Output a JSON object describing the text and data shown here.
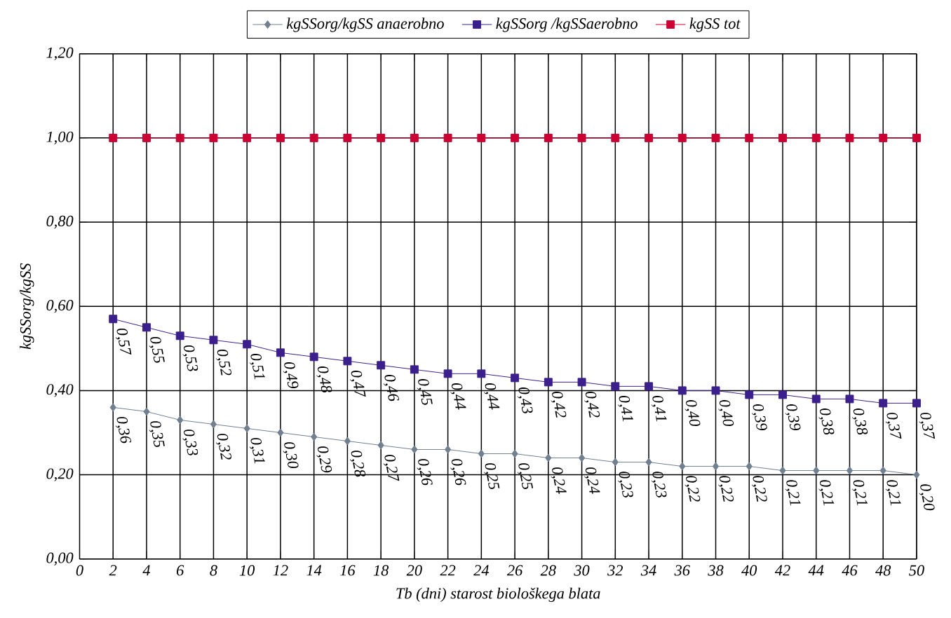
{
  "chart_data": {
    "type": "line",
    "xlabel": "Tb (dni) starost biološkega blata",
    "ylabel": "kgSSorg/kgSS",
    "x": [
      2,
      4,
      6,
      8,
      10,
      12,
      14,
      16,
      18,
      20,
      22,
      24,
      26,
      28,
      30,
      32,
      34,
      36,
      38,
      40,
      42,
      44,
      46,
      48,
      50
    ],
    "series": [
      {
        "name": "kgSSorg/kgSS anaerobno",
        "color": "#708090",
        "marker": "diamond",
        "values": [
          0.36,
          0.35,
          0.33,
          0.32,
          0.31,
          0.3,
          0.29,
          0.28,
          0.27,
          0.26,
          0.26,
          0.25,
          0.25,
          0.24,
          0.24,
          0.23,
          0.23,
          0.22,
          0.22,
          0.22,
          0.21,
          0.21,
          0.21,
          0.21,
          0.2
        ],
        "value_labels": [
          "0,36",
          "0,35",
          "0,33",
          "0,32",
          "0,31",
          "0,30",
          "0,29",
          "0,28",
          "0,27",
          "0,26",
          "0,26",
          "0,25",
          "0,25",
          "0,24",
          "0,24",
          "0,23",
          "0,23",
          "0,22",
          "0,22",
          "0,22",
          "0,21",
          "0,21",
          "0,21",
          "0,21",
          "0,20"
        ]
      },
      {
        "name": "kgSSorg /kgSSaerobno",
        "color": "#3b1f8c",
        "marker": "square",
        "values": [
          0.57,
          0.55,
          0.53,
          0.52,
          0.51,
          0.49,
          0.48,
          0.47,
          0.46,
          0.45,
          0.44,
          0.44,
          0.43,
          0.42,
          0.42,
          0.41,
          0.41,
          0.4,
          0.4,
          0.39,
          0.39,
          0.38,
          0.38,
          0.37,
          0.37
        ],
        "value_labels": [
          "0,57",
          "0,55",
          "0,53",
          "0,52",
          "0,51",
          "0,49",
          "0,48",
          "0,47",
          "0,46",
          "0,45",
          "0,44",
          "0,44",
          "0,43",
          "0,42",
          "0,42",
          "0,41",
          "0,41",
          "0,40",
          "0,40",
          "0,39",
          "0,39",
          "0,38",
          "0,38",
          "0,37",
          "0,37"
        ]
      },
      {
        "name": "kgSS tot",
        "color": "#cc0033",
        "marker": "square",
        "values": [
          1.0,
          1.0,
          1.0,
          1.0,
          1.0,
          1.0,
          1.0,
          1.0,
          1.0,
          1.0,
          1.0,
          1.0,
          1.0,
          1.0,
          1.0,
          1.0,
          1.0,
          1.0,
          1.0,
          1.0,
          1.0,
          1.0,
          1.0,
          1.0,
          1.0
        ]
      }
    ],
    "xlim": [
      0,
      50
    ],
    "xticks": [
      0,
      2,
      4,
      6,
      8,
      10,
      12,
      14,
      16,
      18,
      20,
      22,
      24,
      26,
      28,
      30,
      32,
      34,
      36,
      38,
      40,
      42,
      44,
      46,
      48,
      50
    ],
    "ylim": [
      0,
      1.2
    ],
    "yticks": [
      {
        "value": 0,
        "label": "0,00"
      },
      {
        "value": 0.2,
        "label": "0,20"
      },
      {
        "value": 0.4,
        "label": "0,40"
      },
      {
        "value": 0.6,
        "label": "0,60"
      },
      {
        "value": 0.8,
        "label": "0,80"
      },
      {
        "value": 1.0,
        "label": "1,00"
      },
      {
        "value": 1.2,
        "label": "1,20"
      }
    ],
    "grid": true,
    "legend": "top"
  }
}
